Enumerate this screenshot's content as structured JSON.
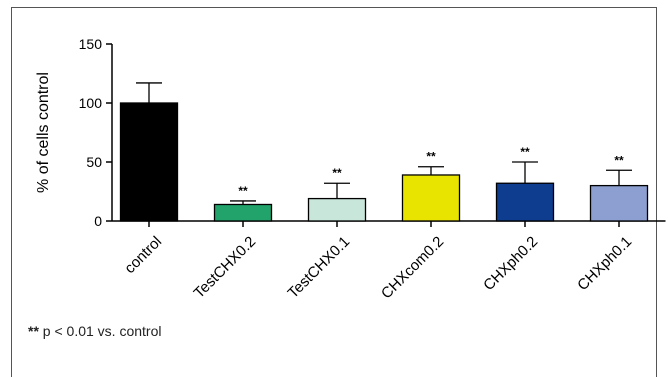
{
  "chart_data": {
    "type": "bar",
    "title": "",
    "xlabel": "",
    "ylabel": "% of cells control",
    "ylim": [
      0,
      150
    ],
    "yticks": [
      0,
      50,
      100,
      150
    ],
    "categories": [
      "control",
      "TestCHX0.2",
      "TestCHX0.1",
      "CHXcom0.2",
      "CHXph0.2",
      "CHXph0.1"
    ],
    "values": [
      100,
      14,
      19,
      39,
      32,
      30
    ],
    "errors": [
      17,
      3,
      13,
      7,
      18,
      13
    ],
    "significance": [
      "",
      "**",
      "**",
      "**",
      "**",
      "**"
    ],
    "colors": [
      "#000000",
      "#21a36b",
      "#c9e6da",
      "#e8e400",
      "#0e3c8e",
      "#8c9fd0"
    ],
    "grid": false,
    "legend": "none"
  },
  "footnote": {
    "marker": "**",
    "text": " p < 0.01 vs. control"
  }
}
